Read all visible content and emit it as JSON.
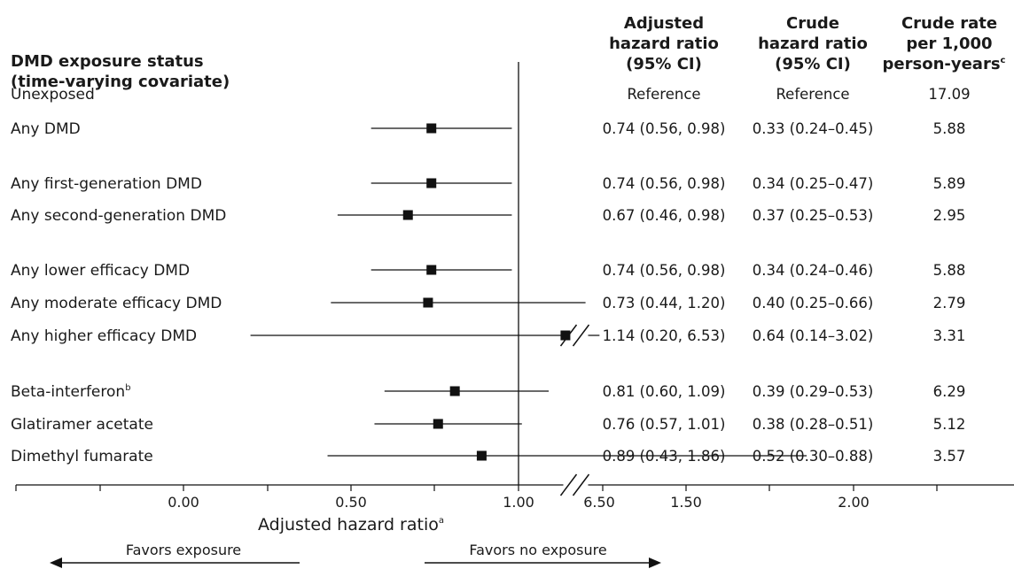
{
  "chart_data": {
    "type": "forest",
    "header": {
      "label_col_line1": "DMD exposure status",
      "label_col_line2": "(time-varying covariate)",
      "adj": [
        "Adjusted",
        "hazard ratio",
        "(95% CI)"
      ],
      "crude": [
        "Crude",
        "hazard ratio",
        "(95% CI)"
      ],
      "rate": [
        "Crude rate",
        "per 1,000",
        "person-years"
      ],
      "rate_sup": "c"
    },
    "rows": [
      {
        "label": "Unexposed",
        "sup": "",
        "adjusted": "Reference",
        "crude": "Reference",
        "rate": "17.09",
        "hr": null,
        "lo": null,
        "hi": null,
        "broken": false
      },
      {
        "label": "Any DMD",
        "sup": "",
        "adjusted": "0.74 (0.56, 0.98)",
        "crude": "0.33 (0.24–0.45)",
        "rate": "5.88",
        "hr": 0.74,
        "lo": 0.56,
        "hi": 0.98,
        "broken": false
      },
      {
        "label": "Any first-generation DMD",
        "sup": "",
        "adjusted": "0.74 (0.56, 0.98)",
        "crude": "0.34 (0.25–0.47)",
        "rate": "5.89",
        "hr": 0.74,
        "lo": 0.56,
        "hi": 0.98,
        "broken": false
      },
      {
        "label": "Any second-generation DMD",
        "sup": "",
        "adjusted": "0.67 (0.46, 0.98)",
        "crude": "0.37 (0.25–0.53)",
        "rate": "2.95",
        "hr": 0.67,
        "lo": 0.46,
        "hi": 0.98,
        "broken": false
      },
      {
        "label": "Any lower efficacy DMD",
        "sup": "",
        "adjusted": "0.74 (0.56, 0.98)",
        "crude": "0.34 (0.24–0.46)",
        "rate": "5.88",
        "hr": 0.74,
        "lo": 0.56,
        "hi": 0.98,
        "broken": false
      },
      {
        "label": "Any moderate efficacy DMD",
        "sup": "",
        "adjusted": "0.73 (0.44, 1.20)",
        "crude": "0.40 (0.25–0.66)",
        "rate": "2.79",
        "hr": 0.73,
        "lo": 0.44,
        "hi": 1.2,
        "broken": false
      },
      {
        "label": "Any higher efficacy DMD",
        "sup": "",
        "adjusted": "1.14 (0.20, 6.53)",
        "crude": "0.64 (0.14–3.02)",
        "rate": "3.31",
        "hr": 1.14,
        "lo": 0.2,
        "hi": 6.53,
        "broken": true
      },
      {
        "label": "Beta-interferon",
        "sup": "b",
        "adjusted": "0.81 (0.60, 1.09)",
        "crude": "0.39 (0.29–0.53)",
        "rate": "6.29",
        "hr": 0.81,
        "lo": 0.6,
        "hi": 1.09,
        "broken": false
      },
      {
        "label": "Glatiramer acetate",
        "sup": "",
        "adjusted": "0.76 (0.57, 1.01)",
        "crude": "0.38 (0.28–0.51)",
        "rate": "5.12",
        "hr": 0.76,
        "lo": 0.57,
        "hi": 1.01,
        "broken": false
      },
      {
        "label": "Dimethyl fumarate",
        "sup": "",
        "adjusted": "0.89 (0.43, 1.86)",
        "crude": "0.52 (0.30–0.88)",
        "rate": "3.57",
        "hr": 0.89,
        "lo": 0.43,
        "hi": 1.86,
        "broken": false
      }
    ],
    "x_ticks": [
      "0.00",
      "0.50",
      "1.00",
      "1.50",
      "2.00",
      "6.50"
    ],
    "xlabel": "Adjusted hazard ratio",
    "xlabel_sup": "a",
    "reference_line": 1.0,
    "favors_left": "Favors exposure",
    "favors_right": "Favors no exposure"
  }
}
